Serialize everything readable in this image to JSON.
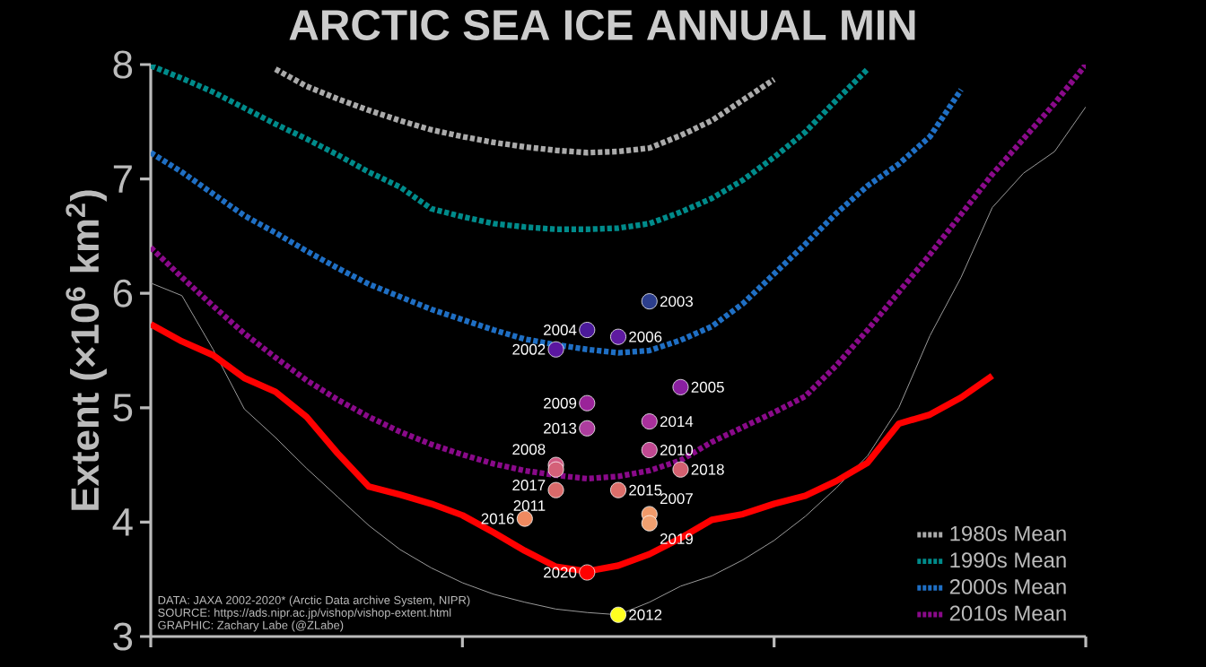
{
  "chart_data": {
    "type": "line",
    "title": "ARCTIC SEA ICE ANNUAL MIN",
    "ylabel": "Extent (×10$^{6}$ km$^{2}$)",
    "categories": [
      null,
      null,
      null,
      null,
      null,
      null,
      null,
      null,
      null,
      null,
      null,
      null,
      null,
      null,
      null,
      null,
      null,
      null,
      null,
      null,
      null,
      null,
      null,
      null,
      null,
      null,
      null,
      null,
      null,
      null,
      null
    ],
    "ylim": [
      3,
      8
    ],
    "yticks": [
      3,
      4,
      5,
      6,
      7,
      8
    ],
    "tick_labels": "y",
    "legend": "bottom right",
    "marker": "none",
    "series": [
      {
        "name": "1980s Mean",
        "color": "#aaaaaa",
        "line_style": "dotted",
        "values": [
          null,
          null,
          null,
          null,
          7.96,
          7.81,
          7.7,
          7.6,
          7.51,
          7.43,
          7.37,
          7.32,
          7.28,
          7.25,
          7.23,
          7.24,
          7.27,
          7.38,
          7.51,
          7.69,
          7.87,
          null,
          null,
          null,
          null,
          null,
          null,
          null,
          null,
          null,
          null
        ]
      },
      {
        "name": "1990s Mean",
        "color": "#008b8b",
        "line_style": "dotted",
        "values": [
          7.99,
          7.88,
          7.76,
          7.62,
          7.48,
          7.35,
          7.21,
          7.06,
          6.93,
          6.74,
          6.67,
          6.61,
          6.58,
          6.56,
          6.56,
          6.57,
          6.61,
          6.71,
          6.83,
          6.99,
          7.19,
          7.41,
          7.69,
          7.96,
          null,
          null,
          null,
          null,
          null,
          null,
          null
        ]
      },
      {
        "name": "2000s Mean",
        "color": "#1f6fc4",
        "line_style": "dotted",
        "values": [
          7.23,
          7.06,
          6.87,
          6.68,
          6.53,
          6.37,
          6.22,
          6.08,
          5.97,
          5.86,
          5.77,
          5.68,
          5.6,
          5.55,
          5.51,
          5.48,
          5.5,
          5.59,
          5.71,
          5.91,
          6.17,
          6.43,
          6.7,
          6.94,
          7.13,
          7.37,
          7.78,
          null,
          null,
          null,
          null
        ]
      },
      {
        "name": "2010s Mean",
        "color": "#8a0a8a",
        "line_style": "dotted",
        "values": [
          6.4,
          6.14,
          5.89,
          5.65,
          5.44,
          5.24,
          5.07,
          4.92,
          4.79,
          4.68,
          4.59,
          4.51,
          4.45,
          4.41,
          4.38,
          4.4,
          4.45,
          4.54,
          4.7,
          4.83,
          4.96,
          5.1,
          5.37,
          5.68,
          6.01,
          6.34,
          6.69,
          7.04,
          7.35,
          7.66,
          8.0
        ]
      },
      {
        "color": "#9a9a9a",
        "line_style": "solid",
        "values": [
          6.09,
          5.98,
          5.51,
          4.99,
          4.74,
          4.47,
          4.22,
          3.97,
          3.76,
          3.6,
          3.47,
          3.37,
          3.3,
          3.24,
          3.21,
          3.19,
          3.3,
          3.44,
          3.53,
          3.67,
          3.84,
          4.05,
          4.3,
          4.58,
          5.0,
          5.63,
          6.14,
          6.75,
          7.05,
          7.24,
          7.63
        ]
      },
      {
        "color": "#ff0000",
        "line_style": "solid",
        "values": [
          5.73,
          5.58,
          5.46,
          5.26,
          5.14,
          4.92,
          4.6,
          4.31,
          4.24,
          4.16,
          4.06,
          3.91,
          3.75,
          3.61,
          3.57,
          3.62,
          3.72,
          3.86,
          4.02,
          4.07,
          4.16,
          4.23,
          4.36,
          4.52,
          4.86,
          4.94,
          5.09,
          5.28,
          null,
          null,
          null
        ]
      },
      {
        "type": "scatter",
        "marker": "circle",
        "values": [
          null,
          null,
          null,
          null,
          null,
          null,
          null,
          null,
          null,
          null,
          null,
          null,
          4.03,
          5.51,
          5.68,
          5.62,
          5.93,
          5.18,
          null,
          null,
          null,
          null,
          null,
          null,
          null,
          null,
          null,
          null,
          null,
          null,
          null
        ],
        "colors": [
          null,
          null,
          null,
          null,
          null,
          null,
          null,
          null,
          null,
          null,
          null,
          null,
          "#f08a60",
          "#5b17a0",
          "#4b1a9a",
          "#5e1aa0",
          "#2c3e8c",
          "#8a1fa0",
          null,
          null,
          null,
          null,
          null,
          null,
          null,
          null,
          null,
          null,
          null,
          null,
          null
        ]
      },
      {
        "type": "scatter",
        "marker": "circle",
        "values": [
          null,
          null,
          null,
          null,
          null,
          null,
          null,
          null,
          null,
          null,
          null,
          null,
          null,
          4.5,
          5.04,
          3.19,
          4.07,
          4.46,
          null,
          null,
          null,
          null,
          null,
          null,
          null,
          null,
          null,
          null,
          null,
          null,
          null
        ],
        "colors": [
          null,
          null,
          null,
          null,
          null,
          null,
          null,
          null,
          null,
          null,
          null,
          null,
          null,
          "#d05a82",
          "#9a2399",
          "#ffff20",
          "#f09a6a",
          "#d46070",
          null,
          null,
          null,
          null,
          null,
          null,
          null,
          null,
          null,
          null,
          null,
          null,
          null
        ]
      },
      {
        "type": "scatter",
        "marker": "circle",
        "values": [
          null,
          null,
          null,
          null,
          null,
          null,
          null,
          null,
          null,
          null,
          null,
          null,
          null,
          4.28,
          4.82,
          4.28,
          4.63,
          null,
          null,
          null,
          null,
          null,
          null,
          null,
          null,
          null,
          null,
          null,
          null,
          null,
          null
        ],
        "colors": [
          null,
          null,
          null,
          null,
          null,
          null,
          null,
          null,
          null,
          null,
          null,
          null,
          null,
          "#d96a6a",
          "#ad3d9e",
          "#dc6e6a",
          "#c04891",
          null,
          null,
          null,
          null,
          null,
          null,
          null,
          null,
          null,
          null,
          null,
          null,
          null,
          null
        ]
      },
      {
        "type": "scatter",
        "marker": "circle",
        "values": [
          null,
          null,
          null,
          null,
          null,
          null,
          null,
          null,
          null,
          null,
          null,
          null,
          null,
          4.46,
          3.56,
          null,
          4.88,
          null,
          null,
          null,
          null,
          null,
          null,
          null,
          null,
          null,
          null,
          null,
          null,
          null,
          null
        ],
        "colors": [
          null,
          null,
          null,
          null,
          null,
          null,
          null,
          null,
          null,
          null,
          null,
          null,
          null,
          "#d46078",
          "#ff0000",
          null,
          "#a9309c",
          null,
          null,
          null,
          null,
          null,
          null,
          null,
          null,
          null,
          null,
          null,
          null,
          null,
          null
        ]
      },
      {
        "type": "scatter",
        "marker": "circle",
        "values": [
          null,
          null,
          null,
          null,
          null,
          null,
          null,
          null,
          null,
          null,
          null,
          null,
          null,
          null,
          null,
          null,
          3.99,
          null,
          null,
          null,
          null,
          null,
          null,
          null,
          null,
          null,
          null,
          null,
          null,
          null,
          null
        ],
        "colors": [
          null,
          null,
          null,
          null,
          null,
          null,
          null,
          null,
          null,
          null,
          null,
          null,
          null,
          null,
          null,
          null,
          "#f0a070",
          null,
          null,
          null,
          null,
          null,
          null,
          null,
          null,
          null,
          null,
          null,
          null,
          null,
          null
        ]
      }
    ],
    "annotations": [
      "2016",
      "2002",
      "2004",
      "2006",
      "2003",
      "2005",
      "2008",
      "2009",
      "2012",
      "2007",
      "2018",
      "2011",
      "2013",
      "2015",
      "2010",
      "2017",
      "2020",
      "2014",
      "2019",
      "DATA: JAXA 2002-2020* (Arctic Data archive System, NIPR)",
      "SOURCE: https://ads.nipr.ac.jp/vishop/vishop-extent.html",
      "GRAPHIC: Zachary Labe (@ZLabe)"
    ]
  }
}
